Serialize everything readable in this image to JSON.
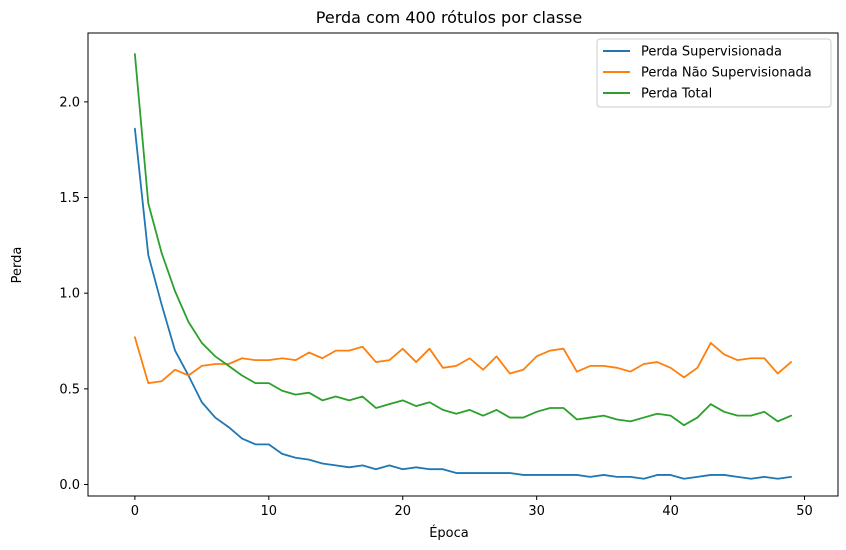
{
  "chart_data": {
    "type": "line",
    "title": "Perda com 400 rótulos por classe",
    "xlabel": "Época",
    "ylabel": "Perda",
    "xlim": [
      -3.5,
      52.5
    ],
    "ylim": [
      -0.06,
      2.36
    ],
    "xticks": [
      0,
      10,
      20,
      30,
      40,
      50
    ],
    "xtick_labels": [
      "0",
      "10",
      "20",
      "30",
      "40",
      "50"
    ],
    "yticks": [
      0.0,
      0.5,
      1.0,
      1.5,
      2.0
    ],
    "ytick_labels": [
      "0.0",
      "0.5",
      "1.0",
      "1.5",
      "2.0"
    ],
    "grid": false,
    "legend_position": "top-right",
    "x": [
      0,
      1,
      2,
      3,
      4,
      5,
      6,
      7,
      8,
      9,
      10,
      11,
      12,
      13,
      14,
      15,
      16,
      17,
      18,
      19,
      20,
      21,
      22,
      23,
      24,
      25,
      26,
      27,
      28,
      29,
      30,
      31,
      32,
      33,
      34,
      35,
      36,
      37,
      38,
      39,
      40,
      41,
      42,
      43,
      44,
      45,
      46,
      47,
      48,
      49
    ],
    "series": [
      {
        "name": "Perda Supervisionada",
        "color": "#1f77b4",
        "values": [
          1.86,
          1.2,
          0.94,
          0.7,
          0.57,
          0.43,
          0.35,
          0.3,
          0.24,
          0.21,
          0.21,
          0.16,
          0.14,
          0.13,
          0.11,
          0.1,
          0.09,
          0.1,
          0.08,
          0.1,
          0.08,
          0.09,
          0.08,
          0.08,
          0.06,
          0.06,
          0.06,
          0.06,
          0.06,
          0.05,
          0.05,
          0.05,
          0.05,
          0.05,
          0.04,
          0.05,
          0.04,
          0.04,
          0.03,
          0.05,
          0.05,
          0.03,
          0.04,
          0.05,
          0.05,
          0.04,
          0.03,
          0.04,
          0.03,
          0.04
        ]
      },
      {
        "name": "Perda Não Supervisionada",
        "color": "#ff7f0e",
        "values": [
          0.77,
          0.53,
          0.54,
          0.6,
          0.57,
          0.62,
          0.63,
          0.63,
          0.66,
          0.65,
          0.65,
          0.66,
          0.65,
          0.69,
          0.66,
          0.7,
          0.7,
          0.72,
          0.64,
          0.65,
          0.71,
          0.64,
          0.71,
          0.61,
          0.62,
          0.66,
          0.6,
          0.67,
          0.58,
          0.6,
          0.67,
          0.7,
          0.71,
          0.59,
          0.62,
          0.62,
          0.61,
          0.59,
          0.63,
          0.64,
          0.61,
          0.56,
          0.61,
          0.74,
          0.68,
          0.65,
          0.66,
          0.66,
          0.58,
          0.64
        ]
      },
      {
        "name": "Perda Total",
        "color": "#2ca02c",
        "values": [
          2.25,
          1.47,
          1.21,
          1.01,
          0.85,
          0.74,
          0.67,
          0.62,
          0.57,
          0.53,
          0.53,
          0.49,
          0.47,
          0.48,
          0.44,
          0.46,
          0.44,
          0.46,
          0.4,
          0.42,
          0.44,
          0.41,
          0.43,
          0.39,
          0.37,
          0.39,
          0.36,
          0.39,
          0.35,
          0.35,
          0.38,
          0.4,
          0.4,
          0.34,
          0.35,
          0.36,
          0.34,
          0.33,
          0.35,
          0.37,
          0.36,
          0.31,
          0.35,
          0.42,
          0.38,
          0.36,
          0.36,
          0.38,
          0.33,
          0.36
        ]
      }
    ]
  }
}
